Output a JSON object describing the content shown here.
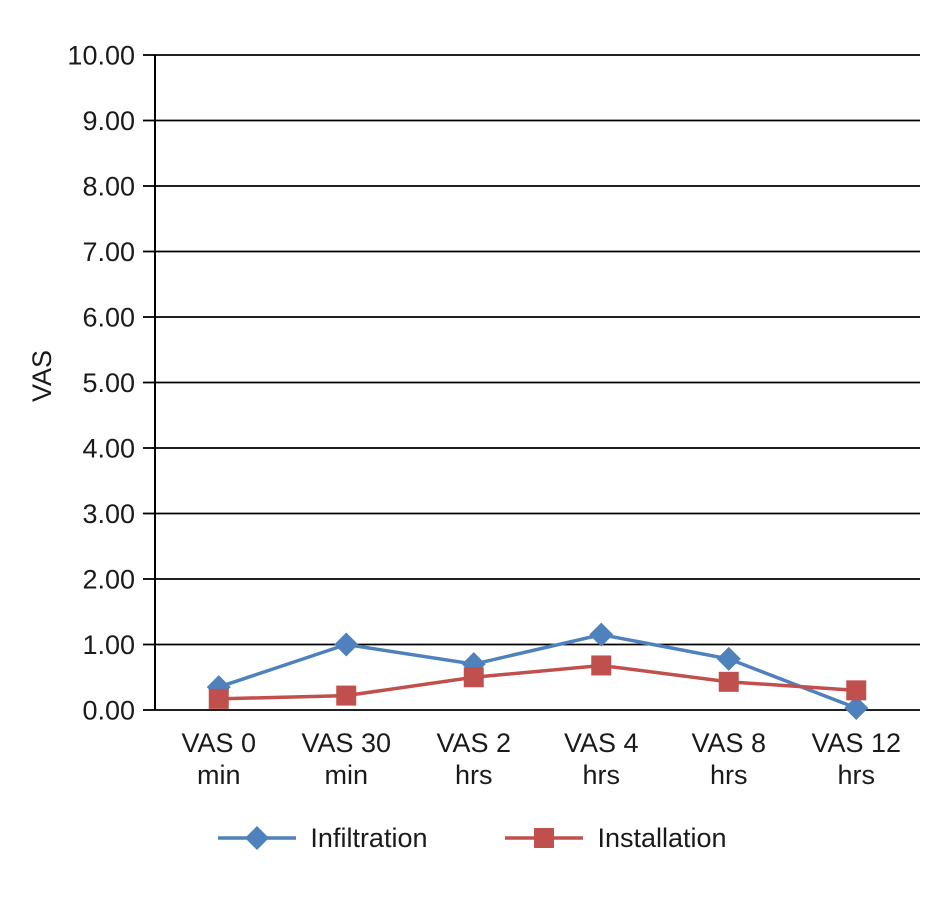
{
  "chart_data": {
    "type": "line",
    "title": "",
    "xlabel": "",
    "ylabel": "VAS",
    "ylim": [
      0,
      10
    ],
    "ytick_step": 1,
    "ytick_decimals": 2,
    "grid": "horizontal",
    "legend_position": "bottom",
    "categories": [
      "VAS 0 min",
      "VAS 30 min",
      "VAS 2 hrs",
      "VAS 4 hrs",
      "VAS 8 hrs",
      "VAS 12 hrs"
    ],
    "series": [
      {
        "name": "Infiltration",
        "marker": "diamond",
        "color": "#4F81BD",
        "values": [
          0.35,
          1.0,
          0.7,
          1.15,
          0.78,
          0.03
        ]
      },
      {
        "name": "Installation",
        "marker": "square",
        "color": "#C0504D",
        "values": [
          0.17,
          0.22,
          0.5,
          0.68,
          0.43,
          0.3
        ]
      }
    ]
  }
}
